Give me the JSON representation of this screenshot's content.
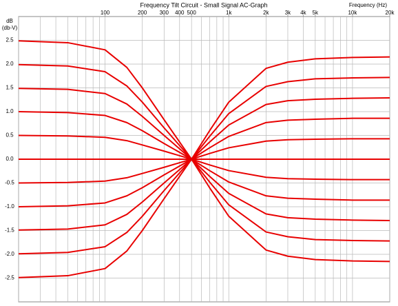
{
  "chart_data": {
    "type": "line",
    "title": "Frequency Tilt Circuit - Small Signal AC-Graph",
    "x_label": "Frequency   (Hz)",
    "y_label": "dB",
    "y_unit": "(db-V)",
    "log_x": true,
    "grid": true,
    "color": "#e80000",
    "xlim": [
      20,
      20000
    ],
    "ylim": [
      -3,
      3
    ],
    "xticks": [
      100,
      200,
      300,
      400,
      500,
      {
        "value": 1000,
        "label": "1k"
      },
      {
        "value": 2000,
        "label": "2k"
      },
      {
        "value": 3000,
        "label": "3k"
      },
      {
        "value": 4000,
        "label": "4k"
      },
      {
        "value": 5000,
        "label": "5k"
      },
      {
        "value": 10000,
        "label": "10k"
      },
      {
        "value": 20000,
        "label": "20k"
      }
    ],
    "xminor": [
      20,
      30,
      40,
      50,
      60,
      70,
      80,
      90,
      100,
      200,
      300,
      400,
      500,
      600,
      700,
      800,
      900,
      1000,
      2000,
      3000,
      4000,
      5000,
      6000,
      7000,
      8000,
      9000,
      10000,
      20000
    ],
    "yticks": [
      2.5,
      {
        "value": 2,
        "label": "2.0"
      },
      1.5,
      {
        "value": 1,
        "label": "1.0"
      },
      0.5,
      {
        "value": 0,
        "label": "0.0"
      },
      -0.5,
      {
        "value": -1,
        "label": "-1.0"
      },
      -1.5,
      {
        "value": -2,
        "label": "-2.0"
      },
      -2.5
    ],
    "x": [
      20,
      50,
      100,
      150,
      200,
      300,
      500,
      700,
      1000,
      2000,
      3000,
      5000,
      10000,
      20000
    ],
    "series": [
      {
        "values": [
          2.49,
          2.45,
          2.3,
          1.93,
          1.5,
          0.83,
          0,
          -0.6,
          -1.2,
          -1.91,
          -2.04,
          -2.11,
          -2.14,
          -2.15
        ]
      },
      {
        "values": [
          1.99,
          1.96,
          1.84,
          1.54,
          1.2,
          0.66,
          0,
          -0.48,
          -0.96,
          -1.53,
          -1.63,
          -1.69,
          -1.71,
          -1.72
        ]
      },
      {
        "values": [
          1.49,
          1.47,
          1.38,
          1.16,
          0.9,
          0.5,
          0,
          -0.36,
          -0.72,
          -1.15,
          -1.23,
          -1.26,
          -1.28,
          -1.29
        ]
      },
      {
        "values": [
          1.0,
          0.98,
          0.92,
          0.77,
          0.6,
          0.33,
          0,
          -0.24,
          -0.48,
          -0.77,
          -0.82,
          -0.84,
          -0.86,
          -0.86
        ]
      },
      {
        "values": [
          0.5,
          0.49,
          0.46,
          0.39,
          0.3,
          0.17,
          0,
          -0.12,
          -0.24,
          -0.38,
          -0.41,
          -0.42,
          -0.43,
          -0.43
        ]
      },
      {
        "values": [
          0,
          0,
          0,
          0,
          0,
          0,
          0,
          0,
          0,
          0,
          0,
          0,
          0,
          0
        ]
      },
      {
        "values": [
          -0.5,
          -0.49,
          -0.46,
          -0.39,
          -0.3,
          -0.17,
          0,
          0.12,
          0.24,
          0.38,
          0.41,
          0.42,
          0.43,
          0.43
        ]
      },
      {
        "values": [
          -1.0,
          -0.98,
          -0.92,
          -0.77,
          -0.6,
          -0.33,
          0,
          0.24,
          0.48,
          0.77,
          0.82,
          0.84,
          0.86,
          0.86
        ]
      },
      {
        "values": [
          -1.49,
          -1.47,
          -1.38,
          -1.16,
          -0.9,
          -0.5,
          0,
          0.36,
          0.72,
          1.15,
          1.23,
          1.26,
          1.28,
          1.29
        ]
      },
      {
        "values": [
          -1.99,
          -1.96,
          -1.84,
          -1.54,
          -1.2,
          -0.66,
          0,
          0.48,
          0.96,
          1.53,
          1.63,
          1.69,
          1.71,
          1.72
        ]
      },
      {
        "values": [
          -2.49,
          -2.45,
          -2.3,
          -1.93,
          -1.5,
          -0.83,
          0,
          0.6,
          1.2,
          1.91,
          2.04,
          2.11,
          2.14,
          2.15
        ]
      }
    ]
  }
}
